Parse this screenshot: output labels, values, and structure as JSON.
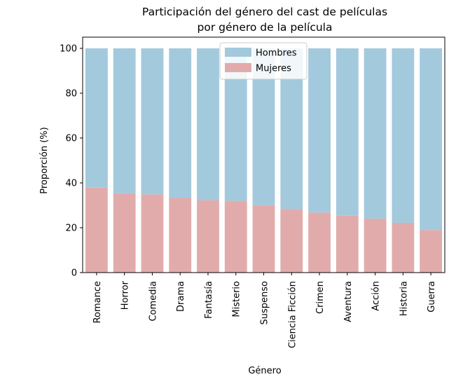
{
  "chart_data": {
    "type": "bar",
    "stacked": true,
    "title": "Participación del género del cast de películas\npor género de la película",
    "xlabel": "Género",
    "ylabel": "Proporción (%)",
    "ylim": [
      0,
      105
    ],
    "yticks": [
      0,
      20,
      40,
      60,
      80,
      100
    ],
    "grid": false,
    "legend_position": "top-center",
    "categories": [
      "Romance",
      "Horror",
      "Comedia",
      "Drama",
      "Fantasía",
      "Misterio",
      "Suspenso",
      "Ciencia Ficción",
      "Crimen",
      "Aventura",
      "Acción",
      "Historia",
      "Guerra"
    ],
    "series": [
      {
        "name": "Hombres",
        "color": "#a3c9dd",
        "values": [
          62.1,
          64.6,
          65.1,
          66.7,
          67.7,
          68.0,
          69.9,
          71.6,
          73.2,
          74.6,
          75.9,
          77.8,
          81.0
        ]
      },
      {
        "name": "Mujeres",
        "color": "#e2abab",
        "values": [
          37.9,
          35.4,
          34.9,
          33.3,
          32.3,
          32.0,
          30.1,
          28.4,
          26.8,
          25.4,
          24.1,
          22.2,
          19.0
        ]
      }
    ]
  }
}
